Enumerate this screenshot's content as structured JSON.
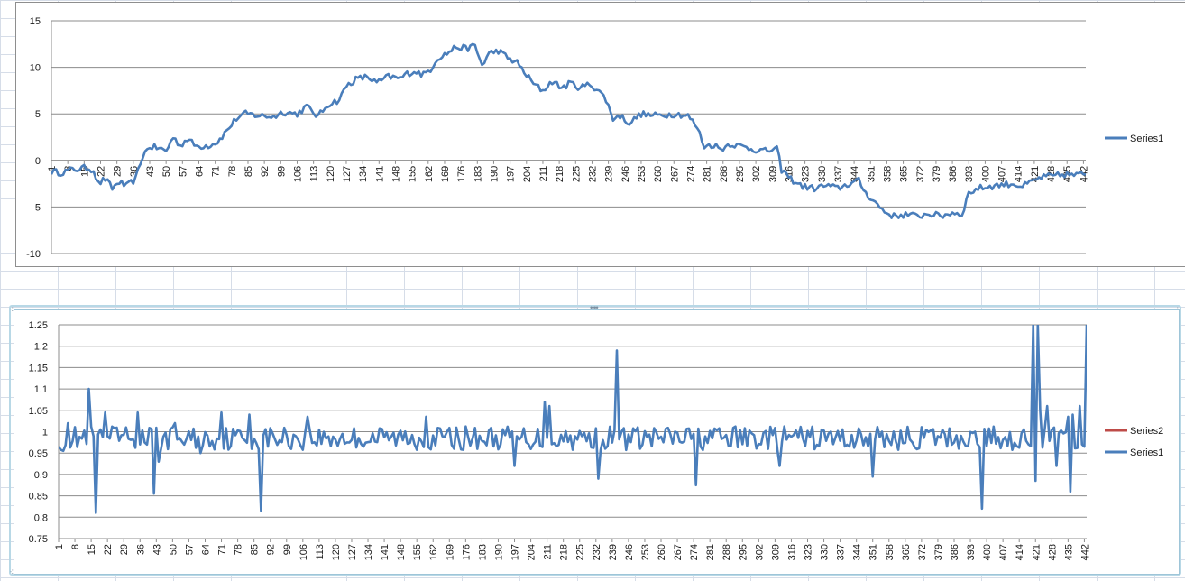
{
  "chart_data": [
    {
      "type": "line",
      "title": "",
      "xlabel": "",
      "ylabel": "",
      "ylim": [
        -10,
        15
      ],
      "yticks": [
        -10,
        -5,
        0,
        5,
        10,
        15
      ],
      "x_range": [
        1,
        443
      ],
      "x_tick_labels": [
        "1",
        "8",
        "15",
        "22",
        "29",
        "36",
        "43",
        "50",
        "57",
        "64",
        "71",
        "78",
        "85",
        "92",
        "99",
        "106",
        "113",
        "120",
        "127",
        "134",
        "141",
        "148",
        "155",
        "162",
        "169",
        "176",
        "183",
        "190",
        "197",
        "204",
        "211",
        "218",
        "225",
        "232",
        "239",
        "246",
        "253",
        "260",
        "267",
        "274",
        "281",
        "288",
        "295",
        "302",
        "309",
        "316",
        "323",
        "330",
        "337",
        "344",
        "351",
        "358",
        "365",
        "372",
        "379",
        "386",
        "393",
        "400",
        "407",
        "414",
        "421",
        "428",
        "435",
        "442"
      ],
      "grid": true,
      "legend_position": "right",
      "series": [
        {
          "name": "Series1",
          "color": "#4a7ebb",
          "anchors": [
            [
              1,
              -1.2
            ],
            [
              5,
              -1.3
            ],
            [
              10,
              -1.0
            ],
            [
              16,
              -0.8
            ],
            [
              19,
              -1.0
            ],
            [
              21,
              -2.5
            ],
            [
              24,
              -2.0
            ],
            [
              27,
              -3.0
            ],
            [
              30,
              -2.3
            ],
            [
              33,
              -2.8
            ],
            [
              37,
              -2.0
            ],
            [
              40,
              0.5
            ],
            [
              43,
              1.5
            ],
            [
              47,
              1.3
            ],
            [
              50,
              1.0
            ],
            [
              53,
              2.5
            ],
            [
              56,
              1.6
            ],
            [
              59,
              2.3
            ],
            [
              63,
              1.5
            ],
            [
              68,
              1.6
            ],
            [
              72,
              2.0
            ],
            [
              76,
              3.2
            ],
            [
              80,
              4.5
            ],
            [
              84,
              5.0
            ],
            [
              90,
              4.8
            ],
            [
              96,
              4.7
            ],
            [
              100,
              5.2
            ],
            [
              106,
              5.0
            ],
            [
              110,
              5.8
            ],
            [
              115,
              4.7
            ],
            [
              119,
              6.0
            ],
            [
              124,
              6.5
            ],
            [
              127,
              8.0
            ],
            [
              131,
              8.7
            ],
            [
              136,
              9.0
            ],
            [
              140,
              8.3
            ],
            [
              145,
              9.0
            ],
            [
              150,
              8.8
            ],
            [
              153,
              9.3
            ],
            [
              156,
              9.6
            ],
            [
              160,
              9.2
            ],
            [
              163,
              9.8
            ],
            [
              166,
              11.0
            ],
            [
              170,
              11.5
            ],
            [
              174,
              12.2
            ],
            [
              178,
              12.0
            ],
            [
              182,
              12.3
            ],
            [
              185,
              10.2
            ],
            [
              188,
              11.5
            ],
            [
              192,
              11.8
            ],
            [
              196,
              11.0
            ],
            [
              200,
              10.5
            ],
            [
              203,
              9.5
            ],
            [
              207,
              8.2
            ],
            [
              211,
              7.5
            ],
            [
              215,
              8.5
            ],
            [
              219,
              7.8
            ],
            [
              223,
              8.3
            ],
            [
              227,
              7.8
            ],
            [
              231,
              8.2
            ],
            [
              235,
              7.5
            ],
            [
              238,
              6.5
            ],
            [
              241,
              4.5
            ],
            [
              244,
              4.8
            ],
            [
              248,
              4.0
            ],
            [
              253,
              5.0
            ],
            [
              258,
              4.8
            ],
            [
              263,
              4.9
            ],
            [
              268,
              5.0
            ],
            [
              273,
              4.8
            ],
            [
              277,
              3.5
            ],
            [
              280,
              1.5
            ],
            [
              284,
              1.7
            ],
            [
              287,
              1.2
            ],
            [
              291,
              1.8
            ],
            [
              296,
              1.5
            ],
            [
              301,
              1.2
            ],
            [
              306,
              1.0
            ],
            [
              311,
              1.2
            ],
            [
              313,
              -1.0
            ],
            [
              317,
              -2.0
            ],
            [
              322,
              -2.8
            ],
            [
              327,
              -3.0
            ],
            [
              332,
              -2.7
            ],
            [
              337,
              -3.0
            ],
            [
              342,
              -2.5
            ],
            [
              346,
              -2.2
            ],
            [
              349,
              -3.5
            ],
            [
              353,
              -4.5
            ],
            [
              357,
              -5.5
            ],
            [
              361,
              -6.0
            ],
            [
              366,
              -5.8
            ],
            [
              371,
              -6.0
            ],
            [
              376,
              -5.7
            ],
            [
              381,
              -6.0
            ],
            [
              386,
              -5.6
            ],
            [
              390,
              -5.8
            ],
            [
              393,
              -3.5
            ],
            [
              397,
              -3.0
            ],
            [
              402,
              -2.8
            ],
            [
              407,
              -2.6
            ],
            [
              412,
              -2.5
            ],
            [
              416,
              -2.8
            ],
            [
              420,
              -2.3
            ],
            [
              424,
              -1.8
            ],
            [
              429,
              -1.7
            ],
            [
              434,
              -1.5
            ],
            [
              439,
              -1.6
            ],
            [
              443,
              -1.4
            ]
          ],
          "noise": 0.35
        }
      ]
    },
    {
      "type": "line",
      "title": "",
      "xlabel": "",
      "ylabel": "",
      "ylim": [
        0.75,
        1.25
      ],
      "yticks": [
        0.75,
        0.8,
        0.85,
        0.9,
        0.95,
        1,
        1.05,
        1.1,
        1.15,
        1.2,
        1.25
      ],
      "x_range": [
        1,
        443
      ],
      "x_tick_labels": [
        "1",
        "8",
        "15",
        "22",
        "29",
        "36",
        "43",
        "50",
        "57",
        "64",
        "71",
        "78",
        "85",
        "92",
        "99",
        "106",
        "113",
        "120",
        "127",
        "134",
        "141",
        "148",
        "155",
        "162",
        "169",
        "176",
        "183",
        "190",
        "197",
        "204",
        "211",
        "218",
        "225",
        "232",
        "239",
        "246",
        "253",
        "260",
        "267",
        "274",
        "281",
        "288",
        "295",
        "302",
        "309",
        "316",
        "323",
        "330",
        "337",
        "344",
        "351",
        "358",
        "365",
        "372",
        "379",
        "386",
        "393",
        "400",
        "407",
        "414",
        "421",
        "428",
        "435",
        "442"
      ],
      "grid": true,
      "legend_position": "right",
      "series": [
        {
          "name": "Series2",
          "color": "#be4b48",
          "values": []
        },
        {
          "name": "Series1",
          "color": "#4a7ebb",
          "baseline": 0.985,
          "noise": 0.028,
          "spikes": [
            [
              1,
              0.965
            ],
            [
              3,
              0.955
            ],
            [
              5,
              1.02
            ],
            [
              14,
              1.1
            ],
            [
              17,
              0.81
            ],
            [
              21,
              1.045
            ],
            [
              35,
              1.045
            ],
            [
              42,
              0.855
            ],
            [
              44,
              0.93
            ],
            [
              51,
              1.02
            ],
            [
              62,
              0.95
            ],
            [
              71,
              1.045
            ],
            [
              83,
              1.04
            ],
            [
              88,
              0.815
            ],
            [
              108,
              1.035
            ],
            [
              159,
              1.035
            ],
            [
              197,
              0.92
            ],
            [
              210,
              1.07
            ],
            [
              212,
              1.06
            ],
            [
              233,
              0.89
            ],
            [
              241,
              1.19
            ],
            [
              243,
              1.0
            ],
            [
              275,
              0.875
            ],
            [
              311,
              0.92
            ],
            [
              351,
              0.895
            ],
            [
              398,
              0.82
            ],
            [
              418,
              0.97
            ],
            [
              420,
              1.25
            ],
            [
              421,
              0.885
            ],
            [
              422,
              1.25
            ],
            [
              423,
              1.05
            ],
            [
              426,
              1.06
            ],
            [
              430,
              0.92
            ],
            [
              435,
              1.035
            ],
            [
              436,
              0.86
            ],
            [
              437,
              1.04
            ],
            [
              440,
              1.06
            ],
            [
              441,
              0.97
            ],
            [
              443,
              1.25
            ],
            [
              444,
              1.06
            ]
          ]
        }
      ]
    }
  ]
}
